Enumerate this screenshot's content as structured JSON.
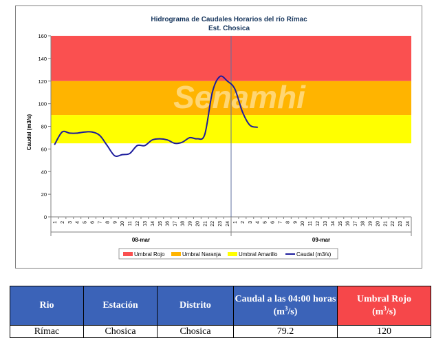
{
  "chart_data": {
    "type": "line",
    "title": "Hidrograma de Caudales Horarios del río Rímac",
    "subtitle": "Est. Chosica",
    "ylabel": "Caudal  (m3/s)",
    "ylim": [
      0,
      160
    ],
    "yticks": [
      0,
      20,
      40,
      60,
      80,
      100,
      120,
      140,
      160
    ],
    "xtick_labels": [
      "1",
      "2",
      "3",
      "4",
      "5",
      "6",
      "7",
      "8",
      "9",
      "10",
      "11",
      "12",
      "13",
      "14",
      "15",
      "16",
      "17",
      "18",
      "19",
      "20",
      "21",
      "22",
      "23",
      "24",
      "1",
      "2",
      "3",
      "4",
      "5",
      "6",
      "7",
      "8",
      "9",
      "10",
      "11",
      "12",
      "13",
      "14",
      "15",
      "16",
      "17",
      "18",
      "19",
      "20",
      "21",
      "22",
      "23",
      "24"
    ],
    "day_labels": [
      "08-mar",
      "09-mar"
    ],
    "bands": [
      {
        "name": "Umbral Rojo",
        "from": 120,
        "to": 160,
        "color": "#fa5050"
      },
      {
        "name": "Umbral Naranja",
        "from": 90,
        "to": 120,
        "color": "#ffb400"
      },
      {
        "name": "Umbral Amarillo",
        "from": 65,
        "to": 90,
        "color": "#ffff00"
      }
    ],
    "series": [
      {
        "name": "Caudal (m3/s)",
        "color": "#1c1c9c",
        "x": [
          1,
          2,
          3,
          4,
          5,
          6,
          7,
          8,
          9,
          10,
          11,
          12,
          13,
          14,
          15,
          16,
          17,
          18,
          19,
          20,
          21,
          22,
          23,
          24,
          25,
          26,
          27,
          28
        ],
        "values": [
          64,
          75,
          74,
          74,
          75,
          75,
          72,
          63,
          54,
          55,
          56,
          63,
          63,
          68,
          69,
          68,
          65,
          66,
          70,
          69,
          73,
          110,
          124,
          120,
          113,
          93,
          81,
          79.2
        ]
      }
    ],
    "legend": {
      "position": "bottom",
      "entries": [
        "Umbral Rojo",
        "Umbral Naranja",
        "Umbral Amarillo",
        "Caudal (m3/s)"
      ]
    },
    "watermark": "Senamhi",
    "grid": false
  },
  "table": {
    "headers": {
      "rio": "Rio",
      "estacion": "Estación",
      "distrito": "Distrito",
      "caudal_line1": "Caudal a las 04:00 horas",
      "caudal_unit_open": "(m",
      "caudal_unit_sup": "3",
      "caudal_unit_close": "/s)",
      "umbral_line1": "Umbral Rojo",
      "umbral_unit_open": "(m",
      "umbral_unit_sup": "3",
      "umbral_unit_close": "/s)"
    },
    "row": {
      "rio": "Rímac",
      "estacion": "Chosica",
      "distrito": "Chosica",
      "caudal": "79.2",
      "umbral": "120"
    },
    "colors": {
      "header_blue": "#3b63b8",
      "header_red": "#f6474a"
    }
  }
}
